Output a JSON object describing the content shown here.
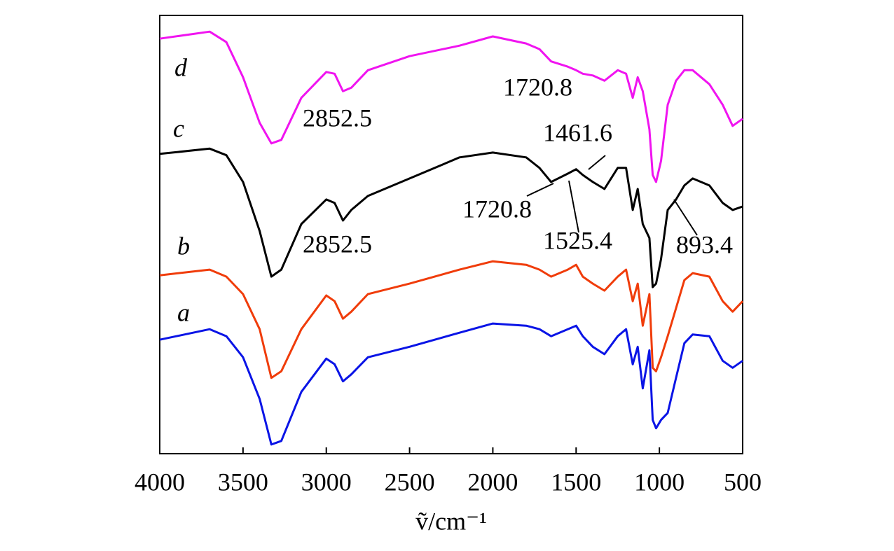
{
  "chart_data": {
    "type": "line",
    "x_label": "ṽ/cm⁻¹",
    "xlim": [
      4000,
      500
    ],
    "xticks": [
      4000,
      3500,
      3000,
      2500,
      2000,
      1500,
      1000,
      500
    ],
    "ylim": [
      0,
      100
    ],
    "x": [
      4000,
      3700,
      3600,
      3500,
      3400,
      3330,
      3270,
      3150,
      3000,
      2950,
      2900,
      2850,
      2750,
      2500,
      2200,
      2000,
      1800,
      1720,
      1650,
      1550,
      1500,
      1460,
      1400,
      1330,
      1250,
      1200,
      1160,
      1130,
      1100,
      1060,
      1040,
      1020,
      990,
      950,
      900,
      850,
      800,
      700,
      620,
      560,
      500
    ],
    "series": [
      {
        "name": "a",
        "color": "#0a14e6",
        "values": [
          26.0,
          28.4,
          26.8,
          22.0,
          12.5,
          2.1,
          2.9,
          14.1,
          21.7,
          20.4,
          16.5,
          18.1,
          22.0,
          24.4,
          27.6,
          29.7,
          29.2,
          28.4,
          26.8,
          28.4,
          29.2,
          26.8,
          24.4,
          22.7,
          26.8,
          28.4,
          20.4,
          24.4,
          14.9,
          23.6,
          7.7,
          5.8,
          7.7,
          9.3,
          17.3,
          25.2,
          27.2,
          26.8,
          21.2,
          19.6,
          21.2
        ]
      },
      {
        "name": "b",
        "color": "#f03c0a",
        "values": [
          40.7,
          42.0,
          40.4,
          36.4,
          28.4,
          17.3,
          18.8,
          28.4,
          36.1,
          34.8,
          30.8,
          32.4,
          36.4,
          38.8,
          42.0,
          43.9,
          43.1,
          42.0,
          40.4,
          42.0,
          43.1,
          40.4,
          38.8,
          37.2,
          40.4,
          42.0,
          34.8,
          38.8,
          29.2,
          36.4,
          19.6,
          18.8,
          22.0,
          26.8,
          33.2,
          39.6,
          41.2,
          40.4,
          34.8,
          32.4,
          34.8
        ]
      },
      {
        "name": "c",
        "color": "#000000",
        "values": [
          68.4,
          69.6,
          68.1,
          62.0,
          50.8,
          40.4,
          42.0,
          52.4,
          58.0,
          57.2,
          53.2,
          55.6,
          58.8,
          62.8,
          67.6,
          68.7,
          67.6,
          65.2,
          62.0,
          63.9,
          64.9,
          63.6,
          62.0,
          60.4,
          65.2,
          65.2,
          55.6,
          60.4,
          52.4,
          49.2,
          38.0,
          38.8,
          44.4,
          55.6,
          58.0,
          61.2,
          62.8,
          61.2,
          57.2,
          55.6,
          56.4
        ]
      },
      {
        "name": "d",
        "color": "#f014f0",
        "values": [
          94.7,
          96.3,
          93.9,
          85.9,
          75.5,
          70.8,
          71.6,
          81.2,
          87.1,
          86.7,
          82.7,
          83.5,
          87.5,
          90.7,
          93.1,
          95.2,
          93.6,
          92.3,
          89.5,
          88.3,
          87.5,
          86.7,
          86.3,
          85.1,
          87.5,
          86.7,
          81.2,
          85.9,
          82.7,
          74.0,
          63.6,
          62.0,
          66.8,
          79.6,
          85.1,
          87.5,
          87.5,
          84.3,
          79.6,
          74.8,
          76.4
        ]
      }
    ],
    "annotations": [
      "2852.5",
      "1720.8",
      "1461.6",
      "1720.8",
      "2852.5",
      "1525.4",
      "893.4"
    ]
  }
}
